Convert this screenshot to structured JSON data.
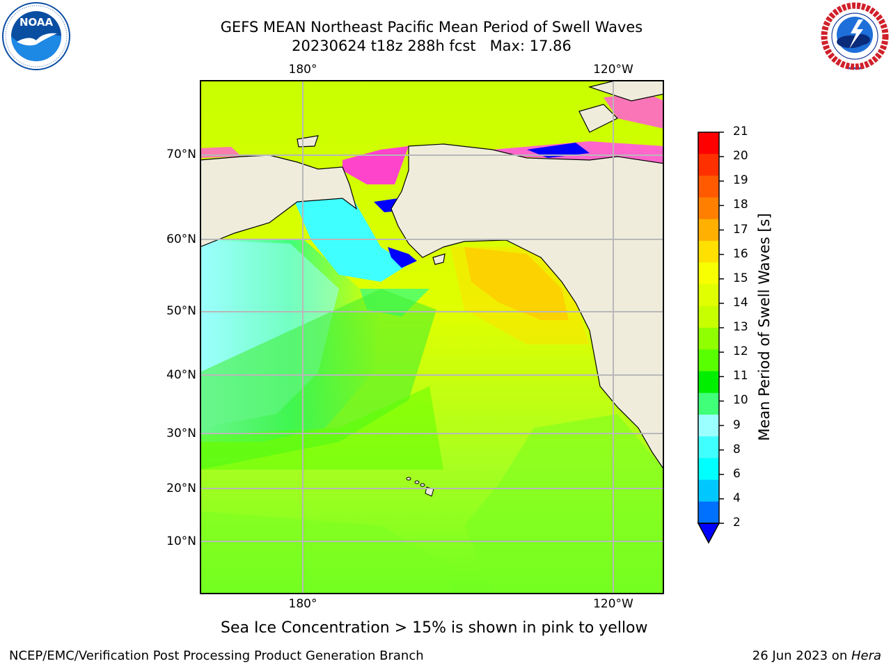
{
  "header": {
    "title_line1": "GEFS MEAN Northeast Pacific Mean Period of Swell Waves",
    "title_line2": "20230624 t18z 288h fcst   Max: 17.86"
  },
  "logos": {
    "left": {
      "text": "NOAA",
      "ring_text": "NATIONAL OCEANIC AND ATMOSPHERIC ADMINISTRATION · U.S. DEPARTMENT OF COMMERCE",
      "color": "#0a4ea2"
    },
    "right": {
      "ring_text": "NATIONAL WEATHER SERVICE",
      "color": "#d0202a"
    }
  },
  "map": {
    "lon_labels_top": [
      "180°",
      "120°W"
    ],
    "lon_labels_bottom": [
      "180°",
      "120°W"
    ],
    "lat_labels": [
      "70°N",
      "60°N",
      "50°N",
      "40°N",
      "30°N",
      "20°N",
      "10°N"
    ],
    "land_color": "#efecdc",
    "gridline_color": "#b8b8b8"
  },
  "colorbar": {
    "label": "Mean Period of Swell Waves [s]",
    "ticks": [
      "21",
      "20",
      "19",
      "18",
      "17",
      "16",
      "15",
      "14",
      "13",
      "12",
      "11",
      "10",
      "9",
      "8",
      "6",
      "4",
      "2"
    ],
    "colors": [
      "#ff0000",
      "#ff3000",
      "#ff5a00",
      "#ff8000",
      "#ffb000",
      "#ffe000",
      "#f7ff00",
      "#e0ff00",
      "#c8ff00",
      "#90ff00",
      "#58ff00",
      "#00ee00",
      "#40ff78",
      "#9cffff",
      "#40ffff",
      "#00ffff",
      "#00c8ff",
      "#0070ff"
    ],
    "under_color": "#0000ff"
  },
  "caption": "Sea Ice Concentration > 15% is shown in pink to yellow",
  "footer": {
    "left": "NCEP/EMC/Verification Post Processing Product Generation Branch",
    "right_prefix": "26 Jun 2023 on ",
    "right_machine": "Hera"
  }
}
